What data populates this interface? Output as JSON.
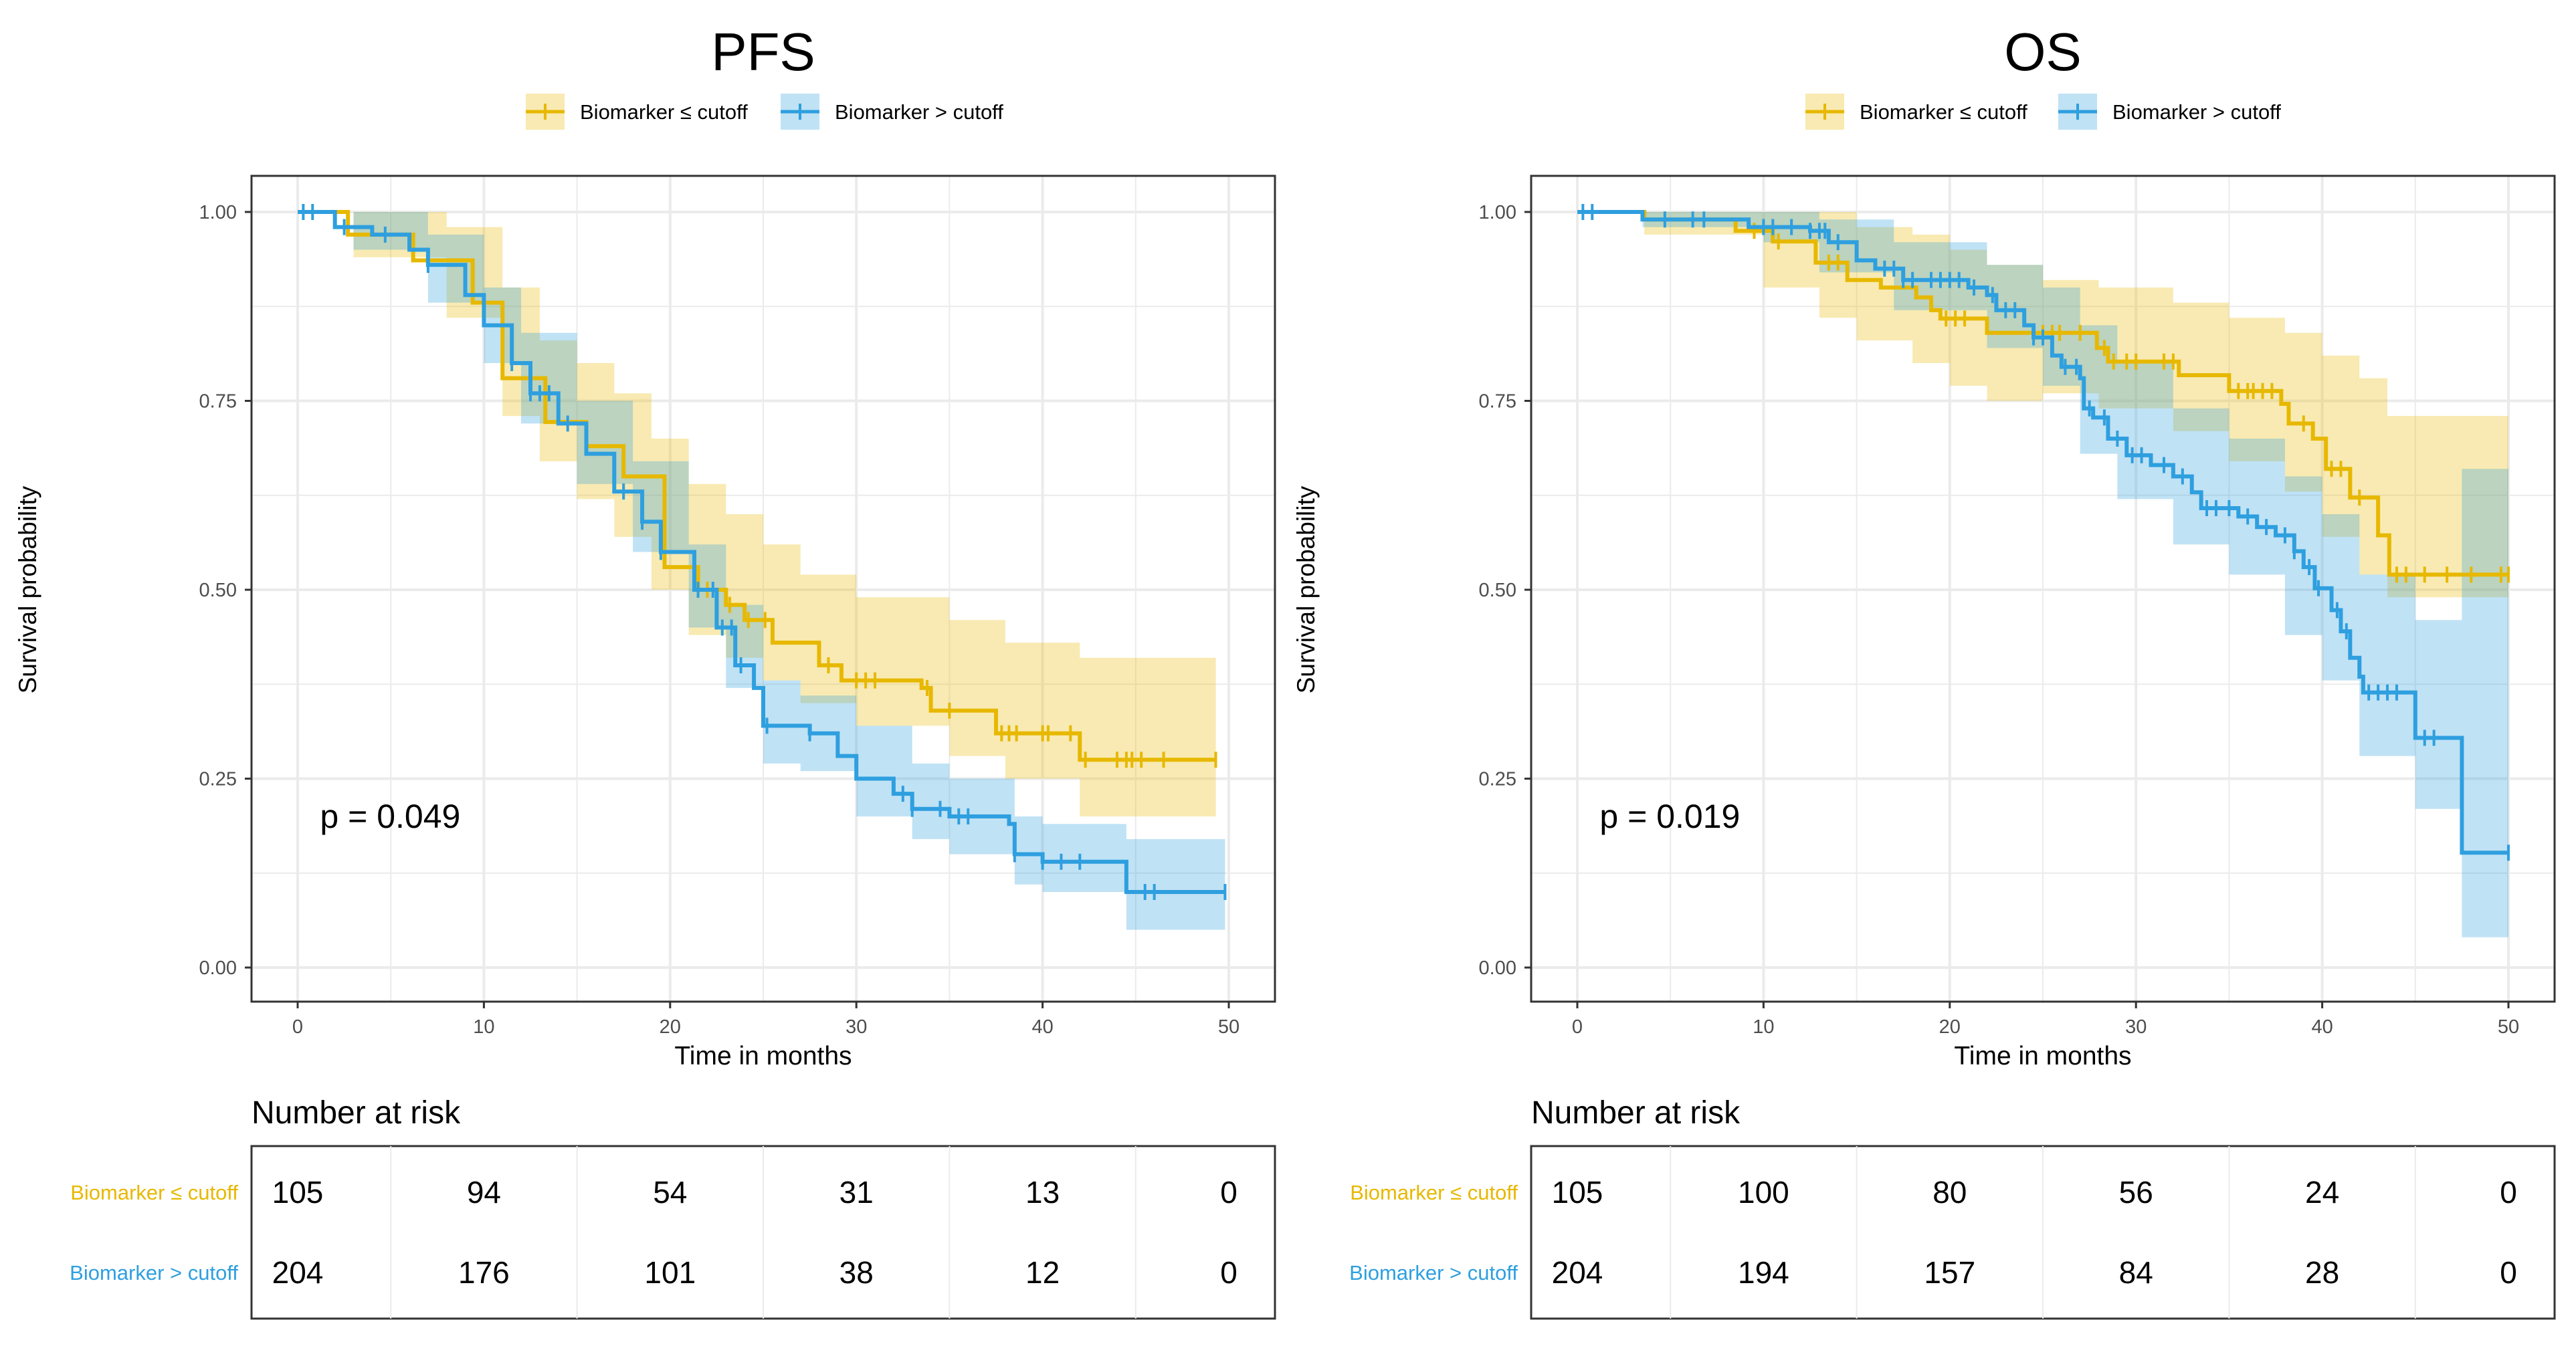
{
  "colors": {
    "low": "#E7B800",
    "high": "#2E9FDF",
    "grid": "#EBEBEB",
    "axis_text": "#4D4D4D"
  },
  "legend": {
    "low_label": "Biomarker ≤ cutoff",
    "high_label": "Biomarker > cutoff"
  },
  "risk_table_title": "Number at risk",
  "chart_data": [
    {
      "type": "line",
      "subtype": "kaplan-meier",
      "title": "PFS",
      "xlabel": "Time in months",
      "ylabel": "Survival probability",
      "xlim": [
        0,
        50
      ],
      "ylim": [
        0,
        1
      ],
      "x_ticks": [
        "0",
        "10",
        "20",
        "30",
        "40",
        "50"
      ],
      "y_ticks": [
        "0.00",
        "0.25",
        "0.50",
        "0.75",
        "1.00"
      ],
      "grid": true,
      "legend_position": "top",
      "annotation": "p = 0.049",
      "series": [
        {
          "name": "Biomarker ≤ cutoff",
          "key": "low",
          "steps": [
            [
              0,
              1
            ],
            [
              2.7,
              0.97
            ],
            [
              6.2,
              0.936
            ],
            [
              9.4,
              0.88
            ],
            [
              11,
              0.78
            ],
            [
              13.3,
              0.722
            ],
            [
              15.5,
              0.69
            ],
            [
              17.5,
              0.65
            ],
            [
              19.7,
              0.53
            ],
            [
              21.5,
              0.5
            ],
            [
              23,
              0.48
            ],
            [
              24,
              0.46
            ],
            [
              25.5,
              0.43
            ],
            [
              28,
              0.4
            ],
            [
              29.2,
              0.38
            ],
            [
              33.5,
              0.37
            ],
            [
              34,
              0.34
            ],
            [
              37.5,
              0.31
            ],
            [
              42,
              0.275
            ]
          ],
          "end": 49.3,
          "ci": [
            [
              0,
              1,
              1
            ],
            [
              3,
              0.94,
              1
            ],
            [
              8,
              0.86,
              0.98
            ],
            [
              11,
              0.73,
              0.9
            ],
            [
              13,
              0.67,
              0.83
            ],
            [
              15,
              0.62,
              0.8
            ],
            [
              17,
              0.57,
              0.76
            ],
            [
              19,
              0.5,
              0.7
            ],
            [
              21,
              0.44,
              0.64
            ],
            [
              23,
              0.41,
              0.6
            ],
            [
              25,
              0.38,
              0.56
            ],
            [
              27,
              0.35,
              0.52
            ],
            [
              30,
              0.32,
              0.49
            ],
            [
              35,
              0.28,
              0.46
            ],
            [
              38,
              0.25,
              0.43
            ],
            [
              42,
              0.2,
              0.41
            ]
          ],
          "censored": [
            22,
            23.2,
            24.2,
            25.1,
            28.5,
            30,
            30.5,
            31,
            33.8,
            35,
            37.8,
            38.2,
            38.6,
            40,
            40.3,
            41.5,
            42.3,
            44,
            44.5,
            44.8,
            45.3,
            46.5,
            49.3
          ]
        },
        {
          "name": "Biomarker > cutoff",
          "key": "high",
          "steps": [
            [
              0,
              1
            ],
            [
              2,
              0.98
            ],
            [
              4,
              0.97
            ],
            [
              6,
              0.95
            ],
            [
              7,
              0.93
            ],
            [
              9,
              0.89
            ],
            [
              10,
              0.85
            ],
            [
              11.5,
              0.8
            ],
            [
              12.5,
              0.76
            ],
            [
              14,
              0.72
            ],
            [
              15.5,
              0.68
            ],
            [
              17,
              0.63
            ],
            [
              18.5,
              0.59
            ],
            [
              19.5,
              0.55
            ],
            [
              21.3,
              0.5
            ],
            [
              22.5,
              0.45
            ],
            [
              23.5,
              0.4
            ],
            [
              24.5,
              0.37
            ],
            [
              25,
              0.32
            ],
            [
              27.5,
              0.31
            ],
            [
              29,
              0.28
            ],
            [
              30,
              0.25
            ],
            [
              32,
              0.23
            ],
            [
              33,
              0.21
            ],
            [
              35,
              0.2
            ],
            [
              38.2,
              0.19
            ],
            [
              38.5,
              0.15
            ],
            [
              40,
              0.14
            ],
            [
              44.5,
              0.1
            ]
          ],
          "end": 49.8,
          "ci": [
            [
              0,
              1,
              1
            ],
            [
              3,
              0.95,
              1
            ],
            [
              7,
              0.88,
              0.97
            ],
            [
              10,
              0.8,
              0.9
            ],
            [
              12,
              0.72,
              0.84
            ],
            [
              15,
              0.64,
              0.75
            ],
            [
              18,
              0.55,
              0.67
            ],
            [
              21,
              0.45,
              0.56
            ],
            [
              23,
              0.37,
              0.48
            ],
            [
              25,
              0.27,
              0.38
            ],
            [
              27,
              0.26,
              0.36
            ],
            [
              30,
              0.2,
              0.32
            ],
            [
              33,
              0.17,
              0.27
            ],
            [
              35,
              0.15,
              0.25
            ],
            [
              38.5,
              0.11,
              0.2
            ],
            [
              40,
              0.1,
              0.19
            ],
            [
              44.5,
              0.05,
              0.17
            ]
          ],
          "censored": [
            0.3,
            0.8,
            2.5,
            4.7,
            7,
            11.5,
            12.5,
            13,
            13.5,
            14.5,
            17.5,
            18.5,
            19.5,
            21.5,
            22.3,
            22.8,
            23.3,
            23.8,
            25.2,
            27.5,
            32.5,
            33,
            34.5,
            35.5,
            36,
            38.5,
            40,
            41,
            42,
            45.5,
            46,
            49.8
          ]
        }
      ],
      "risk_table": {
        "times": [
          0,
          10,
          20,
          30,
          40,
          50
        ],
        "rows": [
          {
            "label": "Biomarker ≤ cutoff",
            "key": "low",
            "values": [
              "105",
              "94",
              "54",
              "31",
              "13",
              "0"
            ]
          },
          {
            "label": "Biomarker > cutoff",
            "key": "high",
            "values": [
              "204",
              "176",
              "101",
              "38",
              "12",
              "0"
            ]
          }
        ]
      }
    },
    {
      "type": "line",
      "subtype": "kaplan-meier",
      "title": "OS",
      "xlabel": "Time in months",
      "ylabel": "Survival probability",
      "xlim": [
        0,
        50
      ],
      "ylim": [
        0,
        1
      ],
      "x_ticks": [
        "0",
        "10",
        "20",
        "30",
        "40",
        "50"
      ],
      "y_ticks": [
        "0.00",
        "0.25",
        "0.50",
        "0.75",
        "1.00"
      ],
      "grid": true,
      "legend_position": "top",
      "annotation": "p = 0.019",
      "series": [
        {
          "name": "Biomarker ≤ cutoff",
          "key": "low",
          "steps": [
            [
              0,
              1
            ],
            [
              3.6,
              0.99
            ],
            [
              8.5,
              0.975
            ],
            [
              10.5,
              0.961
            ],
            [
              12.8,
              0.933
            ],
            [
              14.5,
              0.91
            ],
            [
              16.3,
              0.9
            ],
            [
              18.2,
              0.887
            ],
            [
              19,
              0.87
            ],
            [
              19.5,
              0.859
            ],
            [
              22,
              0.84
            ],
            [
              27.9,
              0.82
            ],
            [
              28.5,
              0.802
            ],
            [
              32.3,
              0.784
            ],
            [
              35,
              0.763
            ],
            [
              37.8,
              0.746
            ],
            [
              38.2,
              0.72
            ],
            [
              39.5,
              0.7
            ],
            [
              40.2,
              0.66
            ],
            [
              41.5,
              0.622
            ],
            [
              43,
              0.572
            ],
            [
              43.6,
              0.52
            ]
          ],
          "end": 50,
          "ci": [
            [
              0,
              1,
              1
            ],
            [
              3.6,
              0.97,
              1
            ],
            [
              10,
              0.9,
              1
            ],
            [
              13,
              0.86,
              1
            ],
            [
              15,
              0.83,
              0.98
            ],
            [
              18,
              0.8,
              0.97
            ],
            [
              20,
              0.77,
              0.95
            ],
            [
              22,
              0.75,
              0.93
            ],
            [
              25,
              0.76,
              0.91
            ],
            [
              28,
              0.74,
              0.9
            ],
            [
              32,
              0.71,
              0.88
            ],
            [
              35,
              0.67,
              0.86
            ],
            [
              38,
              0.63,
              0.84
            ],
            [
              40,
              0.57,
              0.81
            ],
            [
              42,
              0.52,
              0.78
            ],
            [
              43.5,
              0.49,
              0.73
            ]
          ],
          "censored": [
            9.5,
            10.8,
            13.5,
            14,
            19.8,
            20.3,
            20.8,
            24.5,
            25,
            25.5,
            25.9,
            27,
            28.3,
            28.8,
            29.5,
            30,
            31.5,
            32,
            35.5,
            36,
            36.3,
            36.8,
            37.3,
            39,
            40.5,
            41,
            42,
            44,
            44.5,
            45.5,
            46.7,
            48,
            49.6,
            50
          ]
        },
        {
          "name": "Biomarker > cutoff",
          "key": "high",
          "steps": [
            [
              0,
              1
            ],
            [
              3.5,
              0.99
            ],
            [
              9.2,
              0.98
            ],
            [
              12.5,
              0.975
            ],
            [
              13.5,
              0.96
            ],
            [
              15,
              0.936
            ],
            [
              16,
              0.925
            ],
            [
              17.5,
              0.91
            ],
            [
              21,
              0.9
            ],
            [
              22,
              0.89
            ],
            [
              22.5,
              0.87
            ],
            [
              24,
              0.85
            ],
            [
              24.5,
              0.834
            ],
            [
              25.5,
              0.81
            ],
            [
              26,
              0.795
            ],
            [
              27,
              0.78
            ],
            [
              27.2,
              0.74
            ],
            [
              27.7,
              0.728
            ],
            [
              28.5,
              0.7
            ],
            [
              29.5,
              0.678
            ],
            [
              30.8,
              0.665
            ],
            [
              32,
              0.65
            ],
            [
              33,
              0.629
            ],
            [
              33.5,
              0.608
            ],
            [
              35.5,
              0.597
            ],
            [
              36.5,
              0.583
            ],
            [
              37.5,
              0.572
            ],
            [
              38.5,
              0.551
            ],
            [
              39,
              0.53
            ],
            [
              39.6,
              0.502
            ],
            [
              40.5,
              0.473
            ],
            [
              41,
              0.445
            ],
            [
              41.5,
              0.41
            ],
            [
              42,
              0.385
            ],
            [
              42.2,
              0.364
            ],
            [
              45,
              0.304
            ],
            [
              47.5,
              0.152
            ]
          ],
          "end": 50,
          "ci": [
            [
              0,
              1,
              1
            ],
            [
              3.5,
              0.98,
              1
            ],
            [
              10,
              0.96,
              1
            ],
            [
              13,
              0.92,
              0.99
            ],
            [
              17,
              0.87,
              0.96
            ],
            [
              22,
              0.82,
              0.93
            ],
            [
              25,
              0.77,
              0.9
            ],
            [
              27,
              0.68,
              0.85
            ],
            [
              29,
              0.62,
              0.8
            ],
            [
              32,
              0.56,
              0.74
            ],
            [
              35,
              0.52,
              0.7
            ],
            [
              38,
              0.44,
              0.65
            ],
            [
              40,
              0.38,
              0.6
            ],
            [
              42,
              0.28,
              0.52
            ],
            [
              45,
              0.21,
              0.46
            ],
            [
              47.5,
              0.04,
              0.66
            ]
          ],
          "censored": [
            0.3,
            0.8,
            4.7,
            6.2,
            6.8,
            10,
            10.5,
            11.5,
            12.5,
            13,
            13.3,
            14,
            16.5,
            17,
            17.5,
            18,
            19,
            19.5,
            20,
            20.5,
            21.3,
            22.3,
            23,
            23.5,
            24.5,
            25,
            26.2,
            26.8,
            27.5,
            28.3,
            29,
            29.8,
            30.3,
            31.5,
            32.5,
            33.8,
            34.3,
            35,
            36,
            37,
            38,
            38.5,
            39.3,
            39.8,
            40.8,
            41.3,
            42.5,
            43,
            43.5,
            44,
            45.5,
            46,
            50
          ]
        }
      ],
      "risk_table": {
        "times": [
          0,
          10,
          20,
          30,
          40,
          50
        ],
        "rows": [
          {
            "label": "Biomarker ≤ cutoff",
            "key": "low",
            "values": [
              "105",
              "100",
              "80",
              "56",
              "24",
              "0"
            ]
          },
          {
            "label": "Biomarker > cutoff",
            "key": "high",
            "values": [
              "204",
              "194",
              "157",
              "84",
              "28",
              "0"
            ]
          }
        ]
      }
    }
  ]
}
